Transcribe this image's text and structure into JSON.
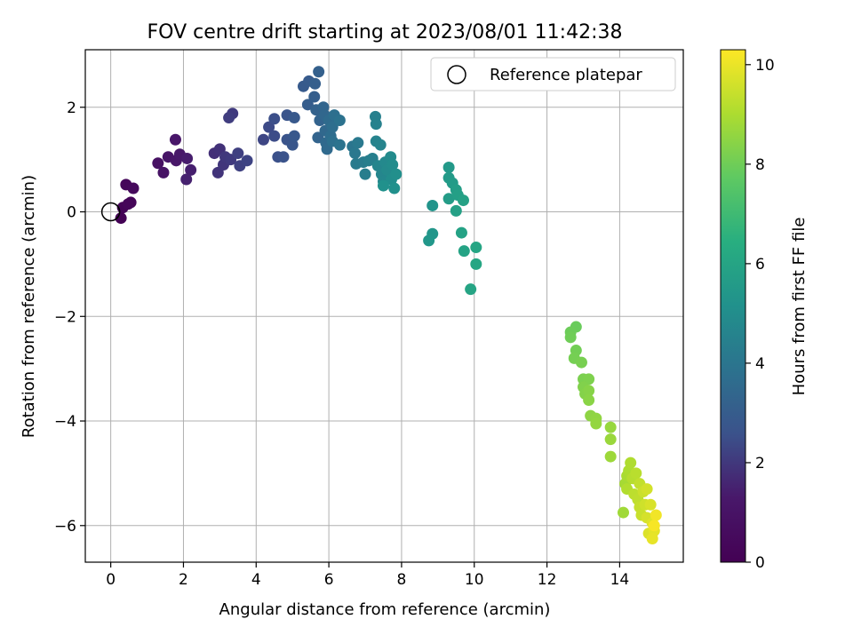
{
  "chart_data": {
    "type": "scatter",
    "title": "FOV centre drift starting at 2023/08/01 11:42:38",
    "xlabel": "Angular distance from reference (arcmin)",
    "ylabel": "Rotation from reference (arcmin)",
    "xlim": [
      -0.7,
      15.75
    ],
    "ylim": [
      -6.7,
      3.1
    ],
    "xticks": [
      0,
      2,
      4,
      6,
      8,
      10,
      12,
      14
    ],
    "xtick_labels": [
      "0",
      "2",
      "4",
      "6",
      "8",
      "10",
      "12",
      "14"
    ],
    "yticks": [
      -6,
      -4,
      -2,
      0,
      2
    ],
    "ytick_labels": [
      "−6",
      "−4",
      "−2",
      "0",
      "2"
    ],
    "grid": true,
    "legend": {
      "position": "top-right",
      "entries": [
        {
          "label": "Reference platepar",
          "marker": "open-circle"
        }
      ]
    },
    "reference_point": {
      "x": 0,
      "y": 0
    },
    "colorbar": {
      "label": "Hours from first FF file",
      "colormap": "viridis",
      "range": [
        0,
        10.3
      ],
      "ticks": [
        0,
        2,
        4,
        6,
        8,
        10
      ],
      "tick_labels": [
        "0",
        "2",
        "4",
        "6",
        "8",
        "10"
      ]
    },
    "points": [
      {
        "x": 0.28,
        "y": -0.12,
        "t": 0.05
      },
      {
        "x": 0.33,
        "y": 0.08,
        "t": 0.15
      },
      {
        "x": 0.55,
        "y": 0.18,
        "t": 0.25
      },
      {
        "x": 0.42,
        "y": 0.52,
        "t": 0.35
      },
      {
        "x": 0.62,
        "y": 0.45,
        "t": 0.45
      },
      {
        "x": 0.48,
        "y": 0.15,
        "t": 0.3
      },
      {
        "x": 1.3,
        "y": 0.93,
        "t": 0.9
      },
      {
        "x": 1.45,
        "y": 0.75,
        "t": 1.0
      },
      {
        "x": 1.58,
        "y": 1.05,
        "t": 1.1
      },
      {
        "x": 1.78,
        "y": 1.38,
        "t": 1.2
      },
      {
        "x": 1.8,
        "y": 0.98,
        "t": 1.25
      },
      {
        "x": 1.9,
        "y": 1.1,
        "t": 1.3
      },
      {
        "x": 2.1,
        "y": 1.02,
        "t": 1.4
      },
      {
        "x": 2.2,
        "y": 0.8,
        "t": 1.45
      },
      {
        "x": 2.08,
        "y": 0.62,
        "t": 1.5
      },
      {
        "x": 2.85,
        "y": 1.12,
        "t": 1.8
      },
      {
        "x": 3.0,
        "y": 1.2,
        "t": 1.85
      },
      {
        "x": 2.95,
        "y": 0.75,
        "t": 1.9
      },
      {
        "x": 3.1,
        "y": 0.9,
        "t": 1.95
      },
      {
        "x": 3.15,
        "y": 1.05,
        "t": 2.0
      },
      {
        "x": 3.3,
        "y": 1.0,
        "t": 2.05
      },
      {
        "x": 3.35,
        "y": 1.88,
        "t": 2.05
      },
      {
        "x": 3.25,
        "y": 1.8,
        "t": 2.1
      },
      {
        "x": 3.5,
        "y": 1.12,
        "t": 2.15
      },
      {
        "x": 3.55,
        "y": 0.88,
        "t": 2.2
      },
      {
        "x": 3.75,
        "y": 0.98,
        "t": 2.25
      },
      {
        "x": 4.2,
        "y": 1.38,
        "t": 2.3
      },
      {
        "x": 4.35,
        "y": 1.62,
        "t": 2.4
      },
      {
        "x": 4.5,
        "y": 1.45,
        "t": 2.45
      },
      {
        "x": 4.5,
        "y": 1.78,
        "t": 2.5
      },
      {
        "x": 4.6,
        "y": 1.05,
        "t": 2.55
      },
      {
        "x": 4.75,
        "y": 1.05,
        "t": 2.6
      },
      {
        "x": 4.85,
        "y": 1.38,
        "t": 2.65
      },
      {
        "x": 4.85,
        "y": 1.85,
        "t": 2.7
      },
      {
        "x": 5.0,
        "y": 1.28,
        "t": 2.75
      },
      {
        "x": 5.05,
        "y": 1.45,
        "t": 2.8
      },
      {
        "x": 5.05,
        "y": 1.8,
        "t": 2.85
      },
      {
        "x": 5.3,
        "y": 2.4,
        "t": 2.9
      },
      {
        "x": 5.45,
        "y": 2.5,
        "t": 2.95
      },
      {
        "x": 5.42,
        "y": 2.05,
        "t": 3.0
      },
      {
        "x": 5.6,
        "y": 2.2,
        "t": 3.05
      },
      {
        "x": 5.62,
        "y": 2.45,
        "t": 3.1
      },
      {
        "x": 5.72,
        "y": 2.68,
        "t": 3.15
      },
      {
        "x": 5.65,
        "y": 1.95,
        "t": 3.2
      },
      {
        "x": 5.75,
        "y": 1.75,
        "t": 3.25
      },
      {
        "x": 5.7,
        "y": 1.42,
        "t": 3.3
      },
      {
        "x": 5.85,
        "y": 2.0,
        "t": 3.35
      },
      {
        "x": 5.88,
        "y": 1.85,
        "t": 3.4
      },
      {
        "x": 5.9,
        "y": 1.55,
        "t": 3.45
      },
      {
        "x": 5.92,
        "y": 1.32,
        "t": 3.5
      },
      {
        "x": 5.95,
        "y": 1.2,
        "t": 3.55
      },
      {
        "x": 6.0,
        "y": 1.75,
        "t": 3.6
      },
      {
        "x": 6.05,
        "y": 1.45,
        "t": 3.65
      },
      {
        "x": 6.1,
        "y": 1.62,
        "t": 3.7
      },
      {
        "x": 6.15,
        "y": 1.85,
        "t": 3.75
      },
      {
        "x": 6.1,
        "y": 1.35,
        "t": 3.8
      },
      {
        "x": 6.3,
        "y": 1.75,
        "t": 3.85
      },
      {
        "x": 6.3,
        "y": 1.28,
        "t": 3.9
      },
      {
        "x": 6.65,
        "y": 1.25,
        "t": 4.0
      },
      {
        "x": 6.72,
        "y": 1.12,
        "t": 4.1
      },
      {
        "x": 6.8,
        "y": 1.32,
        "t": 4.15
      },
      {
        "x": 6.75,
        "y": 0.92,
        "t": 4.2
      },
      {
        "x": 6.95,
        "y": 0.95,
        "t": 4.25
      },
      {
        "x": 7.0,
        "y": 0.72,
        "t": 4.3
      },
      {
        "x": 7.1,
        "y": 0.98,
        "t": 4.35
      },
      {
        "x": 7.2,
        "y": 1.02,
        "t": 4.4
      },
      {
        "x": 7.28,
        "y": 1.82,
        "t": 4.45
      },
      {
        "x": 7.3,
        "y": 1.68,
        "t": 4.5
      },
      {
        "x": 7.3,
        "y": 1.35,
        "t": 4.55
      },
      {
        "x": 7.42,
        "y": 1.28,
        "t": 4.6
      },
      {
        "x": 7.35,
        "y": 0.88,
        "t": 4.65
      },
      {
        "x": 7.45,
        "y": 0.72,
        "t": 4.7
      },
      {
        "x": 7.5,
        "y": 0.58,
        "t": 4.75
      },
      {
        "x": 7.55,
        "y": 0.95,
        "t": 4.8
      },
      {
        "x": 7.6,
        "y": 0.8,
        "t": 4.85
      },
      {
        "x": 7.7,
        "y": 1.05,
        "t": 4.9
      },
      {
        "x": 7.75,
        "y": 0.9,
        "t": 4.95
      },
      {
        "x": 7.72,
        "y": 0.62,
        "t": 5.0
      },
      {
        "x": 7.85,
        "y": 0.72,
        "t": 5.05
      },
      {
        "x": 7.8,
        "y": 0.45,
        "t": 5.1
      },
      {
        "x": 7.5,
        "y": 0.5,
        "t": 5.15
      },
      {
        "x": 8.85,
        "y": 0.12,
        "t": 5.3
      },
      {
        "x": 8.85,
        "y": -0.42,
        "t": 5.35
      },
      {
        "x": 8.75,
        "y": -0.55,
        "t": 5.4
      },
      {
        "x": 9.3,
        "y": 0.85,
        "t": 5.5
      },
      {
        "x": 9.3,
        "y": 0.65,
        "t": 5.55
      },
      {
        "x": 9.4,
        "y": 0.55,
        "t": 5.6
      },
      {
        "x": 9.3,
        "y": 0.25,
        "t": 5.65
      },
      {
        "x": 9.5,
        "y": 0.42,
        "t": 5.7
      },
      {
        "x": 9.55,
        "y": 0.32,
        "t": 5.75
      },
      {
        "x": 9.5,
        "y": 0.02,
        "t": 5.8
      },
      {
        "x": 9.7,
        "y": 0.22,
        "t": 5.85
      },
      {
        "x": 9.65,
        "y": -0.4,
        "t": 5.9
      },
      {
        "x": 9.72,
        "y": -0.75,
        "t": 5.95
      },
      {
        "x": 9.9,
        "y": -1.48,
        "t": 6.0
      },
      {
        "x": 10.05,
        "y": -0.68,
        "t": 6.05
      },
      {
        "x": 10.05,
        "y": -1.0,
        "t": 6.1
      },
      {
        "x": 12.8,
        "y": -2.2,
        "t": 7.9
      },
      {
        "x": 12.65,
        "y": -2.3,
        "t": 7.95
      },
      {
        "x": 12.65,
        "y": -2.4,
        "t": 8.0
      },
      {
        "x": 12.8,
        "y": -2.65,
        "t": 8.05
      },
      {
        "x": 12.75,
        "y": -2.8,
        "t": 8.1
      },
      {
        "x": 12.95,
        "y": -2.88,
        "t": 8.15
      },
      {
        "x": 13.0,
        "y": -3.2,
        "t": 8.2
      },
      {
        "x": 13.15,
        "y": -3.2,
        "t": 8.25
      },
      {
        "x": 13.0,
        "y": -3.35,
        "t": 8.3
      },
      {
        "x": 13.05,
        "y": -3.48,
        "t": 8.35
      },
      {
        "x": 13.15,
        "y": -3.42,
        "t": 8.4
      },
      {
        "x": 13.15,
        "y": -3.6,
        "t": 8.45
      },
      {
        "x": 13.2,
        "y": -3.9,
        "t": 8.5
      },
      {
        "x": 13.35,
        "y": -3.95,
        "t": 8.55
      },
      {
        "x": 13.35,
        "y": -4.05,
        "t": 8.6
      },
      {
        "x": 13.75,
        "y": -4.12,
        "t": 8.65
      },
      {
        "x": 13.75,
        "y": -4.35,
        "t": 8.7
      },
      {
        "x": 13.75,
        "y": -4.68,
        "t": 8.75
      },
      {
        "x": 14.1,
        "y": -5.75,
        "t": 8.8
      },
      {
        "x": 14.15,
        "y": -5.2,
        "t": 8.9
      },
      {
        "x": 14.2,
        "y": -5.05,
        "t": 8.95
      },
      {
        "x": 14.25,
        "y": -4.95,
        "t": 9.0
      },
      {
        "x": 14.3,
        "y": -4.8,
        "t": 9.05
      },
      {
        "x": 14.2,
        "y": -5.3,
        "t": 9.1
      },
      {
        "x": 14.35,
        "y": -5.1,
        "t": 9.15
      },
      {
        "x": 14.45,
        "y": -5.0,
        "t": 9.2
      },
      {
        "x": 14.4,
        "y": -5.4,
        "t": 9.25
      },
      {
        "x": 14.5,
        "y": -5.5,
        "t": 9.3
      },
      {
        "x": 14.55,
        "y": -5.2,
        "t": 9.35
      },
      {
        "x": 14.55,
        "y": -5.65,
        "t": 9.4
      },
      {
        "x": 14.6,
        "y": -5.8,
        "t": 9.45
      },
      {
        "x": 14.65,
        "y": -5.35,
        "t": 9.5
      },
      {
        "x": 14.7,
        "y": -5.6,
        "t": 9.55
      },
      {
        "x": 14.75,
        "y": -5.3,
        "t": 9.6
      },
      {
        "x": 14.75,
        "y": -5.85,
        "t": 9.65
      },
      {
        "x": 14.85,
        "y": -5.6,
        "t": 9.7
      },
      {
        "x": 14.8,
        "y": -6.15,
        "t": 9.75
      },
      {
        "x": 14.9,
        "y": -5.95,
        "t": 9.8
      },
      {
        "x": 14.95,
        "y": -6.1,
        "t": 9.9
      },
      {
        "x": 14.9,
        "y": -6.25,
        "t": 9.95
      },
      {
        "x": 15.0,
        "y": -5.8,
        "t": 10.1
      },
      {
        "x": 14.95,
        "y": -6.0,
        "t": 10.2
      }
    ]
  }
}
